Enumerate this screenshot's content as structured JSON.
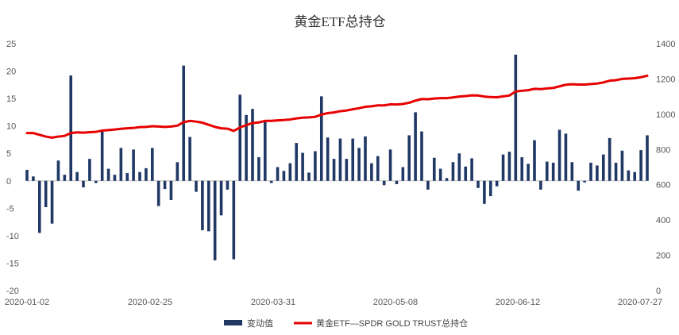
{
  "chart_data": {
    "type": "bar+line",
    "title": "黄金ETF总持仓",
    "x_tick_labels": [
      "2020-01-02",
      "2020-02-25",
      "2020-03-31",
      "2020-05-08",
      "2020-06-12",
      "2020-07-27"
    ],
    "y_left": {
      "ticks": [
        -20,
        -15,
        -10,
        -5,
        0,
        5,
        10,
        15,
        20,
        25
      ],
      "ylim": [
        -20,
        25
      ]
    },
    "y_right": {
      "ticks": [
        0,
        200,
        400,
        600,
        800,
        1000,
        1200,
        1400
      ],
      "ylim": [
        0,
        1400
      ]
    },
    "legend_position": "bottom",
    "colors": {
      "bar": "#1f3864",
      "line": "#e60000"
    },
    "series": [
      {
        "name": "变动值",
        "type": "bar",
        "axis": "left",
        "values": [
          2.0,
          0.8,
          -9.5,
          -4.8,
          -7.8,
          3.7,
          1.1,
          19.2,
          1.6,
          -1.2,
          4.0,
          -0.4,
          9.2,
          2.2,
          1.1,
          6.0,
          1.4,
          5.7,
          1.6,
          2.3,
          6.0,
          -4.6,
          -1.5,
          -3.5,
          3.4,
          21.0,
          8.0,
          -2.0,
          -9.0,
          -9.2,
          -14.5,
          -6.3,
          -1.6,
          -14.3,
          15.7,
          12.0,
          13.1,
          4.3,
          11.0,
          -0.4,
          2.5,
          1.8,
          3.2,
          6.9,
          5.1,
          1.5,
          5.4,
          15.4,
          7.9,
          4.0,
          7.7,
          4.0,
          7.7,
          6.0,
          8.1,
          3.2,
          4.5,
          -0.8,
          5.7,
          -0.6,
          2.5,
          8.3,
          12.5,
          9.0,
          -1.6,
          4.2,
          2.2,
          0.5,
          3.4,
          5.0,
          2.6,
          4.1,
          -1.3,
          -4.2,
          -2.8,
          -1.0,
          4.8,
          5.3,
          23.0,
          4.3,
          3.1,
          7.4,
          -1.6,
          3.5,
          3.3,
          9.3,
          8.6,
          3.4,
          -1.8,
          -0.3,
          3.3,
          2.8,
          4.8,
          7.8,
          3.3,
          5.5,
          1.9,
          1.6,
          5.6,
          8.3
        ]
      },
      {
        "name": "黄金ETF—SPDR GOLD TRUST总持仓",
        "type": "line",
        "axis": "right",
        "values": [
          893,
          893,
          883,
          873,
          867,
          873,
          877,
          893,
          897,
          895,
          898,
          900,
          907,
          910,
          913,
          917,
          920,
          922,
          927,
          928,
          932,
          930,
          928,
          930,
          935,
          955,
          962,
          958,
          952,
          940,
          928,
          920,
          918,
          905,
          925,
          938,
          950,
          953,
          962,
          962,
          965,
          967,
          970,
          976,
          980,
          982,
          985,
          998,
          1006,
          1010,
          1017,
          1021,
          1028,
          1034,
          1042,
          1045,
          1050,
          1050,
          1056,
          1055,
          1058,
          1065,
          1077,
          1086,
          1085,
          1089,
          1091,
          1091,
          1095,
          1100,
          1103,
          1107,
          1106,
          1100,
          1097,
          1096,
          1101,
          1106,
          1129,
          1133,
          1136,
          1144,
          1142,
          1146,
          1149,
          1158,
          1167,
          1170,
          1168,
          1168,
          1171,
          1174,
          1180,
          1190,
          1193,
          1200,
          1202,
          1204,
          1210,
          1218
        ]
      }
    ]
  }
}
